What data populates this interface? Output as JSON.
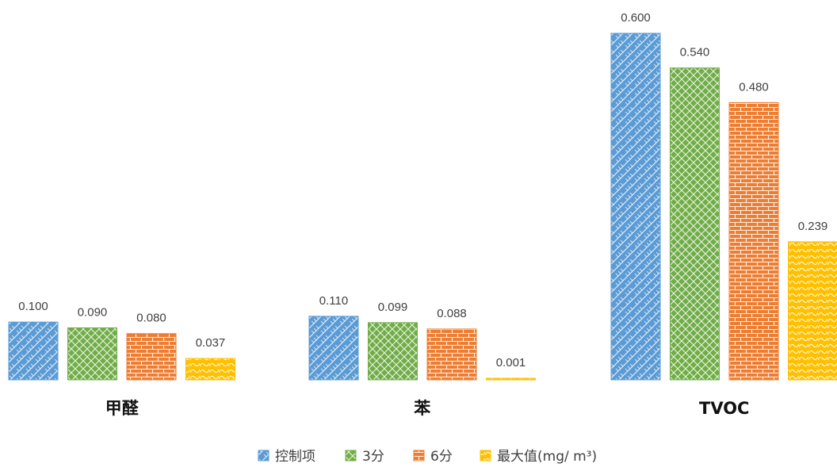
{
  "chart_data": {
    "type": "bar",
    "categories": [
      "甲醛",
      "苯",
      "TVOC"
    ],
    "series": [
      {
        "name": "控制项",
        "values": [
          0.1,
          0.11,
          0.6
        ],
        "labels": [
          "0.100",
          "0.110",
          "0.600"
        ],
        "color": "#5b9bd5",
        "pattern": "weave"
      },
      {
        "name": "3分",
        "values": [
          0.09,
          0.099,
          0.54
        ],
        "labels": [
          "0.090",
          "0.099",
          "0.540"
        ],
        "color": "#70ad47",
        "pattern": "lattice"
      },
      {
        "name": "6分",
        "values": [
          0.08,
          0.088,
          0.48
        ],
        "labels": [
          "0.080",
          "0.088",
          "0.480"
        ],
        "color": "#ed7d31",
        "pattern": "brick"
      },
      {
        "name": "最大值(mg/ m³)",
        "values": [
          0.037,
          0.001,
          0.239
        ],
        "labels": [
          "0.037",
          "0.001",
          "0.239"
        ],
        "color": "#ffc000",
        "pattern": "wave"
      }
    ],
    "ylim": [
      0,
      0.6
    ],
    "grid": false,
    "legend_position": "bottom"
  }
}
